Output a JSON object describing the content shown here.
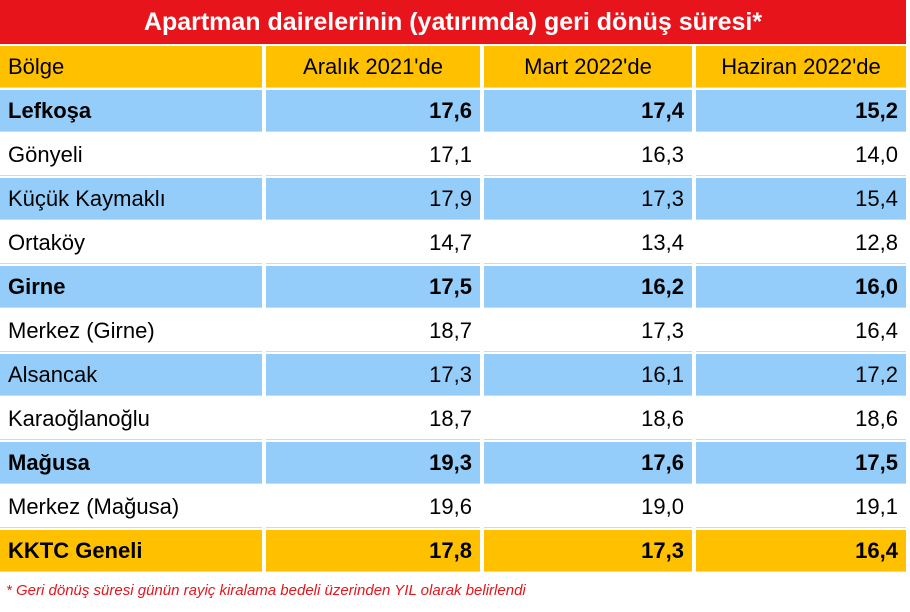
{
  "title": "Apartman dairelerinin (yatırımda)  geri dönüş süresi*",
  "table": {
    "header": [
      "Bölge",
      "Aralık 2021'de",
      "Mart 2022'de",
      "Haziran 2022'de"
    ],
    "rows": [
      {
        "cells": [
          "Lefkoşa",
          "17,6",
          "17,4",
          "15,2"
        ],
        "bold": true,
        "color": "#94cdf9"
      },
      {
        "cells": [
          "Gönyeli",
          "17,1",
          "16,3",
          "14,0"
        ],
        "bold": false,
        "color": "#ffffff"
      },
      {
        "cells": [
          "Küçük Kaymaklı",
          "17,9",
          "17,3",
          "15,4"
        ],
        "bold": false,
        "color": "#94cdf9"
      },
      {
        "cells": [
          "Ortaköy",
          "14,7",
          "13,4",
          "12,8"
        ],
        "bold": false,
        "color": "#ffffff"
      },
      {
        "cells": [
          "Girne",
          "17,5",
          "16,2",
          "16,0"
        ],
        "bold": true,
        "color": "#94cdf9"
      },
      {
        "cells": [
          "Merkez (Girne)",
          "18,7",
          "17,3",
          "16,4"
        ],
        "bold": false,
        "color": "#ffffff"
      },
      {
        "cells": [
          "Alsancak",
          "17,3",
          "16,1",
          "17,2"
        ],
        "bold": false,
        "color": "#94cdf9"
      },
      {
        "cells": [
          "Karaoğlanoğlu",
          "18,7",
          "18,6",
          "18,6"
        ],
        "bold": false,
        "color": "#ffffff"
      },
      {
        "cells": [
          "Mağusa",
          "19,3",
          "17,6",
          "17,5"
        ],
        "bold": true,
        "color": "#94cdf9"
      },
      {
        "cells": [
          "Merkez (Mağusa)",
          "19,6",
          "19,0",
          "19,1"
        ],
        "bold": false,
        "color": "#ffffff"
      },
      {
        "cells": [
          "KKTC Geneli",
          "17,8",
          "17,3",
          "16,4"
        ],
        "bold": true,
        "color": "#ffc000"
      }
    ]
  },
  "footnote": "* Geri dönüş süresi günün rayiç kiralama bedeli üzerinden  YIL  olarak belirlendi"
}
